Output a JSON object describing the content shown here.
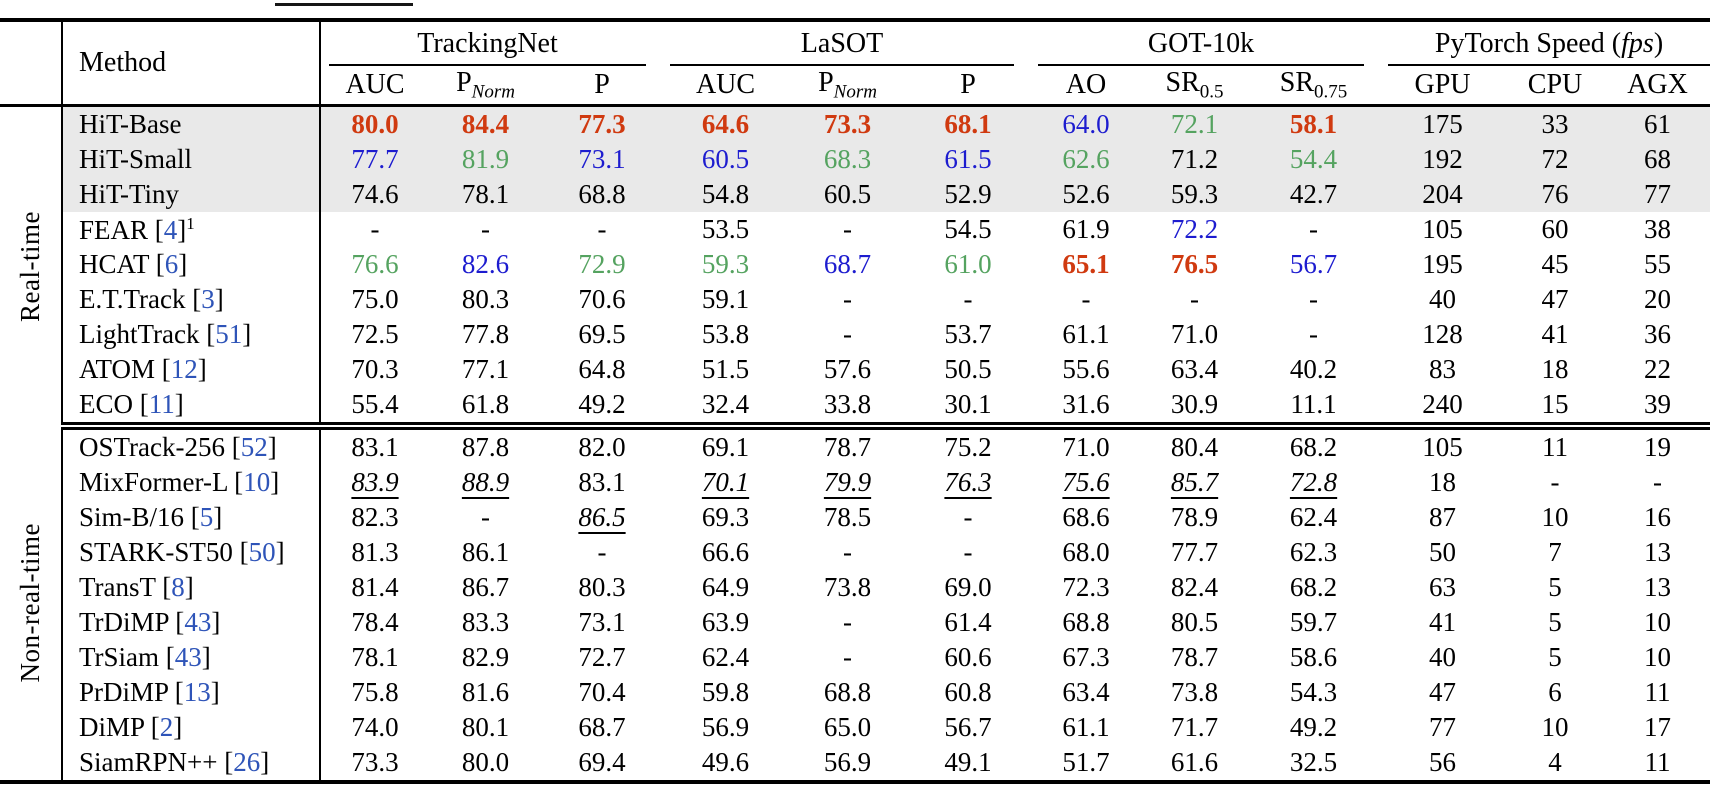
{
  "table": {
    "colors": {
      "best": "#d03a10",
      "second": "#1d1ccf",
      "third": "#55a360",
      "cite": "#2e54b8",
      "highlight_bg": "#e9e9e9"
    },
    "header": {
      "method_label": "Method",
      "groups": [
        {
          "label": "TrackingNet",
          "cols": [
            [
              "AUC",
              ""
            ],
            [
              "P",
              "Norm"
            ],
            [
              "P",
              ""
            ]
          ]
        },
        {
          "label": "LaSOT",
          "cols": [
            [
              "AUC",
              ""
            ],
            [
              "P",
              "Norm"
            ],
            [
              "P",
              ""
            ]
          ]
        },
        {
          "label": "GOT-10k",
          "cols": [
            [
              "AO",
              ""
            ],
            [
              "SR",
              "0.5"
            ],
            [
              "SR",
              "0.75"
            ]
          ]
        },
        {
          "label": "PyTorch Speed (fps)",
          "italic_token": "fps",
          "cols": [
            [
              "GPU",
              ""
            ],
            [
              "CPU",
              ""
            ],
            [
              "AGX",
              ""
            ]
          ]
        }
      ]
    },
    "sections": [
      {
        "label": "Real-time",
        "rows": [
          {
            "method": "HiT-Base",
            "cite": null,
            "sup": null,
            "highlight": true,
            "cells": [
              {
                "v": "80.0",
                "s": "c1"
              },
              {
                "v": "84.4",
                "s": "c1"
              },
              {
                "v": "77.3",
                "s": "c1"
              },
              {
                "v": "64.6",
                "s": "c1"
              },
              {
                "v": "73.3",
                "s": "c1"
              },
              {
                "v": "68.1",
                "s": "c1"
              },
              {
                "v": "64.0",
                "s": "c2"
              },
              {
                "v": "72.1",
                "s": "c3"
              },
              {
                "v": "58.1",
                "s": "c1"
              },
              {
                "v": "175"
              },
              {
                "v": "33"
              },
              {
                "v": "61"
              }
            ]
          },
          {
            "method": "HiT-Small",
            "cite": null,
            "sup": null,
            "highlight": true,
            "cells": [
              {
                "v": "77.7",
                "s": "c2"
              },
              {
                "v": "81.9",
                "s": "c3"
              },
              {
                "v": "73.1",
                "s": "c2"
              },
              {
                "v": "60.5",
                "s": "c2"
              },
              {
                "v": "68.3",
                "s": "c3"
              },
              {
                "v": "61.5",
                "s": "c2"
              },
              {
                "v": "62.6",
                "s": "c3"
              },
              {
                "v": "71.2"
              },
              {
                "v": "54.4",
                "s": "c3"
              },
              {
                "v": "192"
              },
              {
                "v": "72"
              },
              {
                "v": "68"
              }
            ]
          },
          {
            "method": "HiT-Tiny",
            "cite": null,
            "sup": null,
            "highlight": true,
            "cells": [
              {
                "v": "74.6"
              },
              {
                "v": "78.1"
              },
              {
                "v": "68.8"
              },
              {
                "v": "54.8"
              },
              {
                "v": "60.5"
              },
              {
                "v": "52.9"
              },
              {
                "v": "52.6"
              },
              {
                "v": "59.3"
              },
              {
                "v": "42.7"
              },
              {
                "v": "204"
              },
              {
                "v": "76"
              },
              {
                "v": "77"
              }
            ]
          },
          {
            "method": "FEAR",
            "cite": "4",
            "sup": "1",
            "highlight": false,
            "cells": [
              {
                "v": "-"
              },
              {
                "v": "-"
              },
              {
                "v": "-"
              },
              {
                "v": "53.5"
              },
              {
                "v": "-"
              },
              {
                "v": "54.5"
              },
              {
                "v": "61.9"
              },
              {
                "v": "72.2",
                "s": "c2"
              },
              {
                "v": "-"
              },
              {
                "v": "105"
              },
              {
                "v": "60"
              },
              {
                "v": "38"
              }
            ]
          },
          {
            "method": "HCAT",
            "cite": "6",
            "sup": null,
            "highlight": false,
            "cells": [
              {
                "v": "76.6",
                "s": "c3"
              },
              {
                "v": "82.6",
                "s": "c2"
              },
              {
                "v": "72.9",
                "s": "c3"
              },
              {
                "v": "59.3",
                "s": "c3"
              },
              {
                "v": "68.7",
                "s": "c2"
              },
              {
                "v": "61.0",
                "s": "c3"
              },
              {
                "v": "65.1",
                "s": "c1"
              },
              {
                "v": "76.5",
                "s": "c1"
              },
              {
                "v": "56.7",
                "s": "c2"
              },
              {
                "v": "195"
              },
              {
                "v": "45"
              },
              {
                "v": "55"
              }
            ]
          },
          {
            "method": "E.T.Track",
            "cite": "3",
            "sup": null,
            "highlight": false,
            "cells": [
              {
                "v": "75.0"
              },
              {
                "v": "80.3"
              },
              {
                "v": "70.6"
              },
              {
                "v": "59.1"
              },
              {
                "v": "-"
              },
              {
                "v": "-"
              },
              {
                "v": "-"
              },
              {
                "v": "-"
              },
              {
                "v": "-"
              },
              {
                "v": "40"
              },
              {
                "v": "47"
              },
              {
                "v": "20"
              }
            ]
          },
          {
            "method": "LightTrack",
            "cite": "51",
            "sup": null,
            "highlight": false,
            "cells": [
              {
                "v": "72.5"
              },
              {
                "v": "77.8"
              },
              {
                "v": "69.5"
              },
              {
                "v": "53.8"
              },
              {
                "v": "-"
              },
              {
                "v": "53.7"
              },
              {
                "v": "61.1"
              },
              {
                "v": "71.0"
              },
              {
                "v": "-"
              },
              {
                "v": "128"
              },
              {
                "v": "41"
              },
              {
                "v": "36"
              }
            ]
          },
          {
            "method": "ATOM",
            "cite": "12",
            "sup": null,
            "highlight": false,
            "cells": [
              {
                "v": "70.3"
              },
              {
                "v": "77.1"
              },
              {
                "v": "64.8"
              },
              {
                "v": "51.5"
              },
              {
                "v": "57.6"
              },
              {
                "v": "50.5"
              },
              {
                "v": "55.6"
              },
              {
                "v": "63.4"
              },
              {
                "v": "40.2"
              },
              {
                "v": "83"
              },
              {
                "v": "18"
              },
              {
                "v": "22"
              }
            ]
          },
          {
            "method": "ECO",
            "cite": "11",
            "sup": null,
            "highlight": false,
            "cells": [
              {
                "v": "55.4"
              },
              {
                "v": "61.8"
              },
              {
                "v": "49.2"
              },
              {
                "v": "32.4"
              },
              {
                "v": "33.8"
              },
              {
                "v": "30.1"
              },
              {
                "v": "31.6"
              },
              {
                "v": "30.9"
              },
              {
                "v": "11.1"
              },
              {
                "v": "240"
              },
              {
                "v": "15"
              },
              {
                "v": "39"
              }
            ]
          }
        ]
      },
      {
        "label": "Non-real-time",
        "rows": [
          {
            "method": "OSTrack-256",
            "cite": "52",
            "sup": null,
            "highlight": false,
            "cells": [
              {
                "v": "83.1"
              },
              {
                "v": "87.8"
              },
              {
                "v": "82.0"
              },
              {
                "v": "69.1"
              },
              {
                "v": "78.7"
              },
              {
                "v": "75.2"
              },
              {
                "v": "71.0"
              },
              {
                "v": "80.4"
              },
              {
                "v": "68.2"
              },
              {
                "v": "105"
              },
              {
                "v": "11"
              },
              {
                "v": "19"
              }
            ]
          },
          {
            "method": "MixFormer-L",
            "cite": "10",
            "sup": null,
            "highlight": false,
            "cells": [
              {
                "v": "83.9",
                "s": "bu"
              },
              {
                "v": "88.9",
                "s": "bu"
              },
              {
                "v": "83.1"
              },
              {
                "v": "70.1",
                "s": "bu"
              },
              {
                "v": "79.9",
                "s": "bu"
              },
              {
                "v": "76.3",
                "s": "bu"
              },
              {
                "v": "75.6",
                "s": "bu"
              },
              {
                "v": "85.7",
                "s": "bu"
              },
              {
                "v": "72.8",
                "s": "bu"
              },
              {
                "v": "18"
              },
              {
                "v": "-"
              },
              {
                "v": "-"
              }
            ]
          },
          {
            "method": "Sim-B/16",
            "cite": "5",
            "sup": null,
            "highlight": false,
            "cells": [
              {
                "v": "82.3"
              },
              {
                "v": "-"
              },
              {
                "v": "86.5",
                "s": "bu"
              },
              {
                "v": "69.3"
              },
              {
                "v": "78.5"
              },
              {
                "v": "-"
              },
              {
                "v": "68.6"
              },
              {
                "v": "78.9"
              },
              {
                "v": "62.4"
              },
              {
                "v": "87"
              },
              {
                "v": "10"
              },
              {
                "v": "16"
              }
            ]
          },
          {
            "method": "STARK-ST50",
            "cite": "50",
            "sup": null,
            "highlight": false,
            "cells": [
              {
                "v": "81.3"
              },
              {
                "v": "86.1"
              },
              {
                "v": "-"
              },
              {
                "v": "66.6"
              },
              {
                "v": "-"
              },
              {
                "v": "-"
              },
              {
                "v": "68.0"
              },
              {
                "v": "77.7"
              },
              {
                "v": "62.3"
              },
              {
                "v": "50"
              },
              {
                "v": "7"
              },
              {
                "v": "13"
              }
            ]
          },
          {
            "method": "TransT",
            "cite": "8",
            "sup": null,
            "highlight": false,
            "cells": [
              {
                "v": "81.4"
              },
              {
                "v": "86.7"
              },
              {
                "v": "80.3"
              },
              {
                "v": "64.9"
              },
              {
                "v": "73.8"
              },
              {
                "v": "69.0"
              },
              {
                "v": "72.3"
              },
              {
                "v": "82.4"
              },
              {
                "v": "68.2"
              },
              {
                "v": "63"
              },
              {
                "v": "5"
              },
              {
                "v": "13"
              }
            ]
          },
          {
            "method": "TrDiMP",
            "cite": "43",
            "sup": null,
            "highlight": false,
            "cells": [
              {
                "v": "78.4"
              },
              {
                "v": "83.3"
              },
              {
                "v": "73.1"
              },
              {
                "v": "63.9"
              },
              {
                "v": "-"
              },
              {
                "v": "61.4"
              },
              {
                "v": "68.8"
              },
              {
                "v": "80.5"
              },
              {
                "v": "59.7"
              },
              {
                "v": "41"
              },
              {
                "v": "5"
              },
              {
                "v": "10"
              }
            ]
          },
          {
            "method": "TrSiam",
            "cite": "43",
            "sup": null,
            "highlight": false,
            "cells": [
              {
                "v": "78.1"
              },
              {
                "v": "82.9"
              },
              {
                "v": "72.7"
              },
              {
                "v": "62.4"
              },
              {
                "v": "-"
              },
              {
                "v": "60.6"
              },
              {
                "v": "67.3"
              },
              {
                "v": "78.7"
              },
              {
                "v": "58.6"
              },
              {
                "v": "40"
              },
              {
                "v": "5"
              },
              {
                "v": "10"
              }
            ]
          },
          {
            "method": "PrDiMP",
            "cite": "13",
            "sup": null,
            "highlight": false,
            "cells": [
              {
                "v": "75.8"
              },
              {
                "v": "81.6"
              },
              {
                "v": "70.4"
              },
              {
                "v": "59.8"
              },
              {
                "v": "68.8"
              },
              {
                "v": "60.8"
              },
              {
                "v": "63.4"
              },
              {
                "v": "73.8"
              },
              {
                "v": "54.3"
              },
              {
                "v": "47"
              },
              {
                "v": "6"
              },
              {
                "v": "11"
              }
            ]
          },
          {
            "method": "DiMP",
            "cite": "2",
            "sup": null,
            "highlight": false,
            "cells": [
              {
                "v": "74.0"
              },
              {
                "v": "80.1"
              },
              {
                "v": "68.7"
              },
              {
                "v": "56.9"
              },
              {
                "v": "65.0"
              },
              {
                "v": "56.7"
              },
              {
                "v": "61.1"
              },
              {
                "v": "71.7"
              },
              {
                "v": "49.2"
              },
              {
                "v": "77"
              },
              {
                "v": "10"
              },
              {
                "v": "17"
              }
            ]
          },
          {
            "method": "SiamRPN++",
            "cite": "26",
            "sup": null,
            "highlight": false,
            "cells": [
              {
                "v": "73.3"
              },
              {
                "v": "80.0"
              },
              {
                "v": "69.4"
              },
              {
                "v": "49.6"
              },
              {
                "v": "56.9"
              },
              {
                "v": "49.1"
              },
              {
                "v": "51.7"
              },
              {
                "v": "61.6"
              },
              {
                "v": "32.5"
              },
              {
                "v": "56"
              },
              {
                "v": "4"
              },
              {
                "v": "11"
              }
            ]
          }
        ]
      }
    ]
  }
}
